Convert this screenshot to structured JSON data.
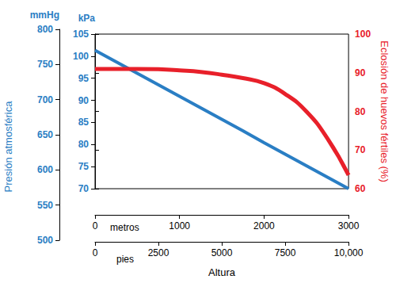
{
  "chart_data": {
    "type": "line",
    "x_label": "Altura",
    "x_unit_label": "metros",
    "x2_unit_label": "pies",
    "y_label": "Presión atmosférica",
    "y_unit": "kPa",
    "y3_unit": "mmHg",
    "y2_label": "Eclosión de huevos fértiles (%)",
    "x": [
      0,
      250,
      500,
      750,
      1000,
      1250,
      1500,
      1750,
      2000,
      2250,
      2500,
      2750,
      3000
    ],
    "series": [
      {
        "name": "Presión atmosférica",
        "color": "#2a7ec4",
        "axis": "y",
        "values": [
          101.3,
          98.7,
          96.1,
          93.5,
          90.9,
          88.3,
          85.7,
          83.1,
          80.4,
          77.8,
          75.2,
          72.6,
          70.0
        ]
      },
      {
        "name": "Eclosión de huevos fértiles (%)",
        "color": "#e8202a",
        "axis": "y2",
        "values": [
          91.0,
          91.0,
          91.0,
          90.9,
          90.6,
          90.2,
          89.5,
          88.6,
          87.3,
          84.5,
          80.0,
          73.0,
          63.5
        ]
      }
    ],
    "xlim": [
      0,
      3000
    ],
    "xticks": [
      0,
      1000,
      2000,
      3000
    ],
    "x2lim": [
      0,
      10000
    ],
    "x2ticks": [
      0,
      2500,
      5000,
      7500,
      {
        "value": 10000,
        "label": "10,000"
      }
    ],
    "ylim": [
      70,
      105
    ],
    "yticks": [
      70,
      75,
      80,
      85,
      90,
      95,
      100,
      105
    ],
    "y2lim": [
      60,
      100
    ],
    "y2ticks": [
      60,
      70,
      80,
      90,
      100
    ],
    "y3lim": [
      500,
      800
    ],
    "y3ticks": [
      500,
      550,
      600,
      650,
      700,
      750,
      800
    ],
    "grid": false
  }
}
